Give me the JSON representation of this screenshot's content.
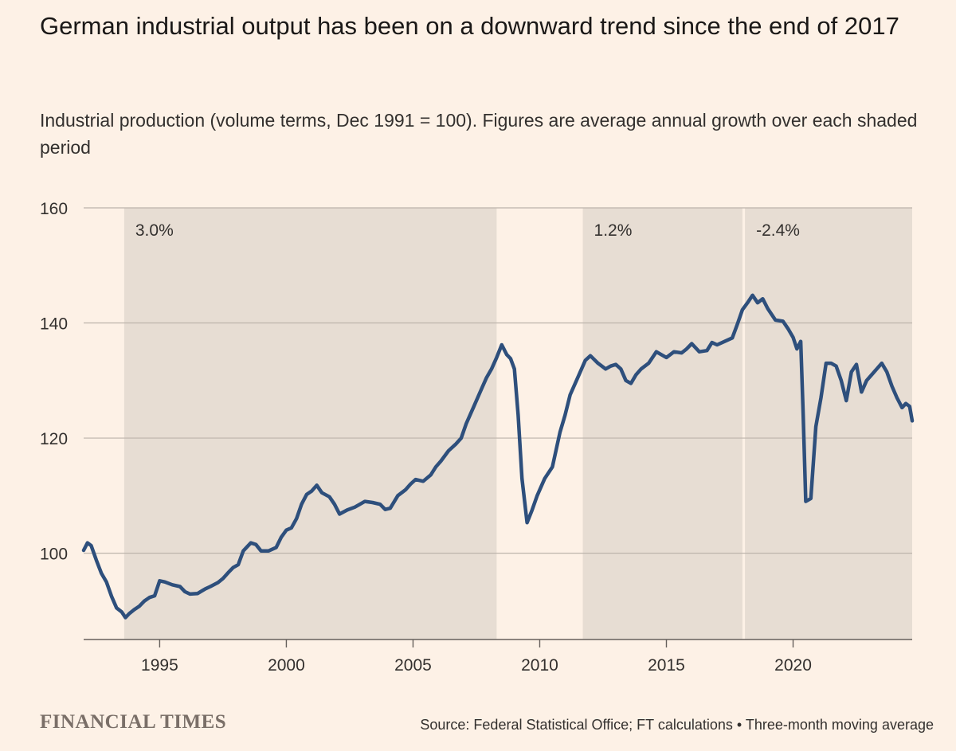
{
  "title": "German industrial output has been on a downward trend since the end of 2017",
  "subtitle": "Industrial production (volume terms, Dec 1991 = 100). Figures are average annual growth over each shaded period",
  "brand": "FINANCIAL TIMES",
  "source": "Source: Federal Statistical Office; FT calculations • Three-month moving average",
  "colors": {
    "background": "#fdf1e6",
    "shade": "#e7ddd3",
    "line": "#2e4f7c",
    "grid": "#bdb4ab"
  },
  "chart_data": {
    "type": "line",
    "title": "German industrial output has been on a downward trend since the end of 2017",
    "xlabel": "",
    "ylabel": "",
    "xlim": [
      1992.0,
      2024.7
    ],
    "ylim": [
      85,
      160
    ],
    "yticks": [
      100,
      120,
      140,
      160
    ],
    "xticks": [
      1995,
      2000,
      2005,
      2010,
      2015,
      2020
    ],
    "shaded_periods": [
      {
        "start": 1993.6,
        "end": 2008.3,
        "label": "3.0%"
      },
      {
        "start": 2011.7,
        "end": 2018.0,
        "label": "1.2%"
      },
      {
        "start": 2018.1,
        "end": 2024.7,
        "label": "-2.4%"
      }
    ],
    "series": [
      {
        "name": "Industrial production (Dec 1991 = 100)",
        "x": [
          1992.0,
          1992.15,
          1992.3,
          1992.5,
          1992.7,
          1992.9,
          1993.1,
          1993.3,
          1993.5,
          1993.65,
          1993.8,
          1994.0,
          1994.2,
          1994.4,
          1994.6,
          1994.8,
          1995.0,
          1995.2,
          1995.5,
          1995.8,
          1996.0,
          1996.2,
          1996.5,
          1996.8,
          1997.0,
          1997.3,
          1997.5,
          1997.7,
          1997.9,
          1998.1,
          1998.3,
          1998.6,
          1998.8,
          1999.0,
          1999.3,
          1999.6,
          1999.8,
          2000.0,
          2000.2,
          2000.4,
          2000.6,
          2000.8,
          2001.0,
          2001.2,
          2001.4,
          2001.7,
          2001.9,
          2002.1,
          2002.4,
          2002.7,
          2002.9,
          2003.1,
          2003.4,
          2003.7,
          2003.9,
          2004.1,
          2004.4,
          2004.7,
          2004.9,
          2005.1,
          2005.4,
          2005.7,
          2005.9,
          2006.1,
          2006.4,
          2006.7,
          2006.9,
          2007.1,
          2007.4,
          2007.7,
          2007.9,
          2008.1,
          2008.3,
          2008.5,
          2008.7,
          2008.85,
          2009.0,
          2009.15,
          2009.3,
          2009.5,
          2009.7,
          2009.9,
          2010.2,
          2010.5,
          2010.8,
          2011.0,
          2011.2,
          2011.5,
          2011.8,
          2012.0,
          2012.3,
          2012.6,
          2012.8,
          2013.0,
          2013.2,
          2013.4,
          2013.6,
          2013.8,
          2014.0,
          2014.3,
          2014.6,
          2014.8,
          2015.0,
          2015.3,
          2015.6,
          2015.8,
          2016.0,
          2016.3,
          2016.6,
          2016.8,
          2017.0,
          2017.3,
          2017.6,
          2017.8,
          2018.0,
          2018.2,
          2018.4,
          2018.6,
          2018.8,
          2019.0,
          2019.3,
          2019.6,
          2019.8,
          2020.0,
          2020.15,
          2020.3,
          2020.4,
          2020.5,
          2020.7,
          2020.9,
          2021.1,
          2021.3,
          2021.5,
          2021.7,
          2021.9,
          2022.1,
          2022.3,
          2022.5,
          2022.7,
          2022.9,
          2023.1,
          2023.3,
          2023.5,
          2023.7,
          2023.9,
          2024.1,
          2024.3,
          2024.45,
          2024.6,
          2024.7
        ],
        "values": [
          100.5,
          101.8,
          101.3,
          98.8,
          96.5,
          95.0,
          92.5,
          90.5,
          89.8,
          88.8,
          89.5,
          90.2,
          90.8,
          91.7,
          92.3,
          92.6,
          95.2,
          95.0,
          94.5,
          94.2,
          93.3,
          92.9,
          93.0,
          93.8,
          94.2,
          94.9,
          95.6,
          96.6,
          97.5,
          98.0,
          100.4,
          101.8,
          101.5,
          100.4,
          100.4,
          101.0,
          102.8,
          104.0,
          104.4,
          106.0,
          108.5,
          110.2,
          110.8,
          111.8,
          110.5,
          109.8,
          108.5,
          106.8,
          107.5,
          108.0,
          108.5,
          109.0,
          108.8,
          108.5,
          107.6,
          107.8,
          110.0,
          111.0,
          112.0,
          112.8,
          112.5,
          113.6,
          115.0,
          116.0,
          117.8,
          119.0,
          120.0,
          122.5,
          125.5,
          128.5,
          130.5,
          132.0,
          134.0,
          136.2,
          134.5,
          133.8,
          132.0,
          124.0,
          113.0,
          105.3,
          107.5,
          110.0,
          113.0,
          115.0,
          121.0,
          124.0,
          127.5,
          130.5,
          133.5,
          134.3,
          133.0,
          132.0,
          132.5,
          132.8,
          132.0,
          130.0,
          129.5,
          131.0,
          132.0,
          133.0,
          135.0,
          134.5,
          134.0,
          135.0,
          134.8,
          135.5,
          136.4,
          135.0,
          135.2,
          136.6,
          136.2,
          136.8,
          137.4,
          139.8,
          142.3,
          143.5,
          144.8,
          143.5,
          144.2,
          142.5,
          140.5,
          140.3,
          139.0,
          137.5,
          135.5,
          136.8,
          124.0,
          109.0,
          109.5,
          122.0,
          127.0,
          133.0,
          133.0,
          132.5,
          130.0,
          126.5,
          131.5,
          132.8,
          128.0,
          130.0,
          131.0,
          132.0,
          133.0,
          131.5,
          129.0,
          127.0,
          125.3,
          126.0,
          125.5,
          123.0
        ]
      }
    ]
  }
}
